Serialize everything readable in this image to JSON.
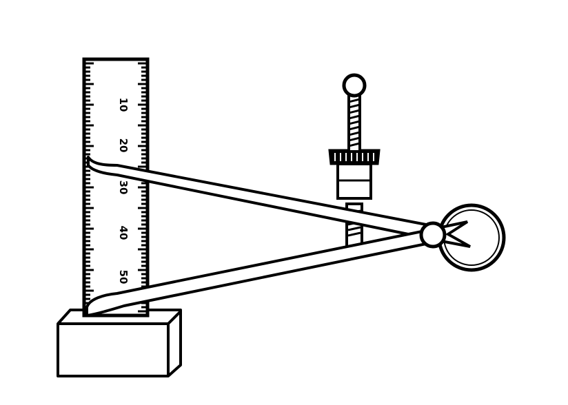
{
  "figure": {
    "ruler": {
      "scale_labels": [
        "10",
        "20",
        "30",
        "40",
        "50"
      ]
    },
    "ink_color": "#000000",
    "paper_color": "#ffffff"
  }
}
